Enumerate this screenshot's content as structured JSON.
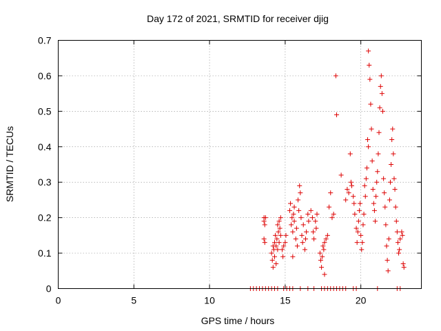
{
  "chart_data": {
    "type": "scatter",
    "title": "Day 172 of 2021, SRMTID for receiver djig",
    "xlabel": "GPS time / hours",
    "ylabel": "SRMTID / TECUs",
    "xlim": [
      0,
      24
    ],
    "ylim": [
      0,
      0.7
    ],
    "xticks": [
      0,
      5,
      10,
      15,
      20
    ],
    "xtick_labels": [
      "0",
      "5",
      "10",
      "15",
      "20"
    ],
    "yticks": [
      0,
      0.1,
      0.2,
      0.3,
      0.4,
      0.5,
      0.6,
      0.7
    ],
    "ytick_labels": [
      "0",
      "0.1",
      "0.2",
      "0.3",
      "0.4",
      "0.5",
      "0.6",
      "0.7"
    ],
    "grid": true,
    "marker": "+",
    "color": "#dd0000",
    "series": [
      {
        "name": "SRMTID",
        "points": [
          [
            12.7,
            0
          ],
          [
            12.9,
            0
          ],
          [
            13.1,
            0
          ],
          [
            13.3,
            0
          ],
          [
            13.5,
            0
          ],
          [
            13.7,
            0
          ],
          [
            13.9,
            0
          ],
          [
            14.1,
            0
          ],
          [
            14.3,
            0
          ],
          [
            14.5,
            0
          ],
          [
            14.9,
            0
          ],
          [
            15.1,
            0
          ],
          [
            15.3,
            0
          ],
          [
            15.5,
            0
          ],
          [
            16.0,
            0
          ],
          [
            16.5,
            0
          ],
          [
            16.9,
            0
          ],
          [
            17.4,
            0
          ],
          [
            17.6,
            0
          ],
          [
            17.8,
            0
          ],
          [
            18.0,
            0
          ],
          [
            18.2,
            0
          ],
          [
            18.4,
            0
          ],
          [
            18.6,
            0
          ],
          [
            18.8,
            0
          ],
          [
            19.0,
            0
          ],
          [
            19.5,
            0
          ],
          [
            19.7,
            0
          ],
          [
            21.1,
            0
          ],
          [
            22.4,
            0
          ],
          [
            22.6,
            0
          ],
          [
            13.6,
            0.2
          ],
          [
            13.6,
            0.19
          ],
          [
            13.65,
            0.18
          ],
          [
            13.6,
            0.14
          ],
          [
            13.65,
            0.13
          ],
          [
            13.7,
            0.2
          ],
          [
            14.1,
            0.1
          ],
          [
            14.15,
            0.08
          ],
          [
            14.2,
            0.12
          ],
          [
            14.2,
            0.06
          ],
          [
            14.25,
            0.11
          ],
          [
            14.3,
            0.09
          ],
          [
            14.3,
            0.13
          ],
          [
            14.35,
            0.15
          ],
          [
            14.4,
            0.12
          ],
          [
            14.4,
            0.07
          ],
          [
            14.45,
            0.14
          ],
          [
            14.5,
            0.18
          ],
          [
            14.5,
            0.11
          ],
          [
            14.55,
            0.16
          ],
          [
            14.6,
            0.19
          ],
          [
            14.6,
            0.13
          ],
          [
            14.65,
            0.17
          ],
          [
            14.7,
            0.2
          ],
          [
            14.7,
            0.15
          ],
          [
            14.8,
            0.11
          ],
          [
            14.85,
            0.09
          ],
          [
            14.9,
            0.12
          ],
          [
            15.0,
            0.13
          ],
          [
            15.05,
            0.15
          ],
          [
            15.3,
            0.22
          ],
          [
            15.35,
            0.24
          ],
          [
            15.4,
            0.18
          ],
          [
            15.45,
            0.2
          ],
          [
            15.5,
            0.16
          ],
          [
            15.5,
            0.09
          ],
          [
            15.55,
            0.21
          ],
          [
            15.6,
            0.19
          ],
          [
            15.6,
            0.23
          ],
          [
            15.7,
            0.14
          ],
          [
            15.75,
            0.17
          ],
          [
            15.8,
            0.12
          ],
          [
            15.85,
            0.25
          ],
          [
            15.9,
            0.22
          ],
          [
            15.95,
            0.29
          ],
          [
            16.0,
            0.27
          ],
          [
            16.05,
            0.2
          ],
          [
            16.1,
            0.15
          ],
          [
            16.15,
            0.13
          ],
          [
            16.2,
            0.18
          ],
          [
            16.3,
            0.11
          ],
          [
            16.35,
            0.14
          ],
          [
            16.4,
            0.16
          ],
          [
            16.5,
            0.21
          ],
          [
            16.55,
            0.19
          ],
          [
            16.7,
            0.22
          ],
          [
            16.8,
            0.2
          ],
          [
            16.85,
            0.16
          ],
          [
            16.9,
            0.14
          ],
          [
            17.0,
            0.19
          ],
          [
            17.05,
            0.17
          ],
          [
            17.1,
            0.21
          ],
          [
            17.3,
            0.1
          ],
          [
            17.35,
            0.08
          ],
          [
            17.4,
            0.06
          ],
          [
            17.45,
            0.09
          ],
          [
            17.5,
            0.12
          ],
          [
            17.55,
            0.11
          ],
          [
            17.6,
            0.04
          ],
          [
            17.6,
            0.13
          ],
          [
            17.7,
            0.14
          ],
          [
            17.8,
            0.15
          ],
          [
            17.9,
            0.23
          ],
          [
            18.0,
            0.27
          ],
          [
            18.1,
            0.2
          ],
          [
            18.2,
            0.21
          ],
          [
            18.35,
            0.6
          ],
          [
            18.4,
            0.49
          ],
          [
            18.7,
            0.32
          ],
          [
            19.0,
            0.25
          ],
          [
            19.1,
            0.28
          ],
          [
            19.2,
            0.27
          ],
          [
            19.3,
            0.38
          ],
          [
            19.35,
            0.3
          ],
          [
            19.4,
            0.29
          ],
          [
            19.5,
            0.26
          ],
          [
            19.55,
            0.24
          ],
          [
            19.6,
            0.21
          ],
          [
            19.7,
            0.17
          ],
          [
            19.75,
            0.13
          ],
          [
            19.8,
            0.16
          ],
          [
            19.85,
            0.19
          ],
          [
            19.9,
            0.22
          ],
          [
            19.95,
            0.24
          ],
          [
            20.0,
            0.15
          ],
          [
            20.05,
            0.11
          ],
          [
            20.1,
            0.13
          ],
          [
            20.15,
            0.18
          ],
          [
            20.2,
            0.21
          ],
          [
            20.25,
            0.29
          ],
          [
            20.3,
            0.26
          ],
          [
            20.35,
            0.31
          ],
          [
            20.4,
            0.34
          ],
          [
            20.45,
            0.42
          ],
          [
            20.5,
            0.4
          ],
          [
            20.5,
            0.67
          ],
          [
            20.55,
            0.63
          ],
          [
            20.6,
            0.59
          ],
          [
            20.65,
            0.52
          ],
          [
            20.7,
            0.45
          ],
          [
            20.75,
            0.36
          ],
          [
            20.8,
            0.28
          ],
          [
            20.85,
            0.24
          ],
          [
            20.9,
            0.22
          ],
          [
            20.95,
            0.19
          ],
          [
            21.0,
            0.26
          ],
          [
            21.05,
            0.3
          ],
          [
            21.1,
            0.33
          ],
          [
            21.15,
            0.38
          ],
          [
            21.2,
            0.44
          ],
          [
            21.25,
            0.51
          ],
          [
            21.3,
            0.57
          ],
          [
            21.35,
            0.6
          ],
          [
            21.4,
            0.55
          ],
          [
            21.45,
            0.5
          ],
          [
            21.5,
            0.31
          ],
          [
            21.55,
            0.27
          ],
          [
            21.6,
            0.23
          ],
          [
            21.65,
            0.18
          ],
          [
            21.7,
            0.12
          ],
          [
            21.75,
            0.08
          ],
          [
            21.8,
            0.05
          ],
          [
            21.85,
            0.14
          ],
          [
            21.9,
            0.25
          ],
          [
            21.95,
            0.3
          ],
          [
            22.0,
            0.35
          ],
          [
            22.05,
            0.42
          ],
          [
            22.1,
            0.45
          ],
          [
            22.15,
            0.38
          ],
          [
            22.2,
            0.31
          ],
          [
            22.25,
            0.28
          ],
          [
            22.3,
            0.23
          ],
          [
            22.35,
            0.19
          ],
          [
            22.4,
            0.16
          ],
          [
            22.45,
            0.13
          ],
          [
            22.5,
            0.1
          ],
          [
            22.55,
            0.11
          ],
          [
            22.6,
            0.14
          ],
          [
            22.7,
            0.16
          ],
          [
            22.75,
            0.15
          ],
          [
            22.8,
            0.07
          ],
          [
            22.85,
            0.06
          ]
        ]
      }
    ]
  }
}
